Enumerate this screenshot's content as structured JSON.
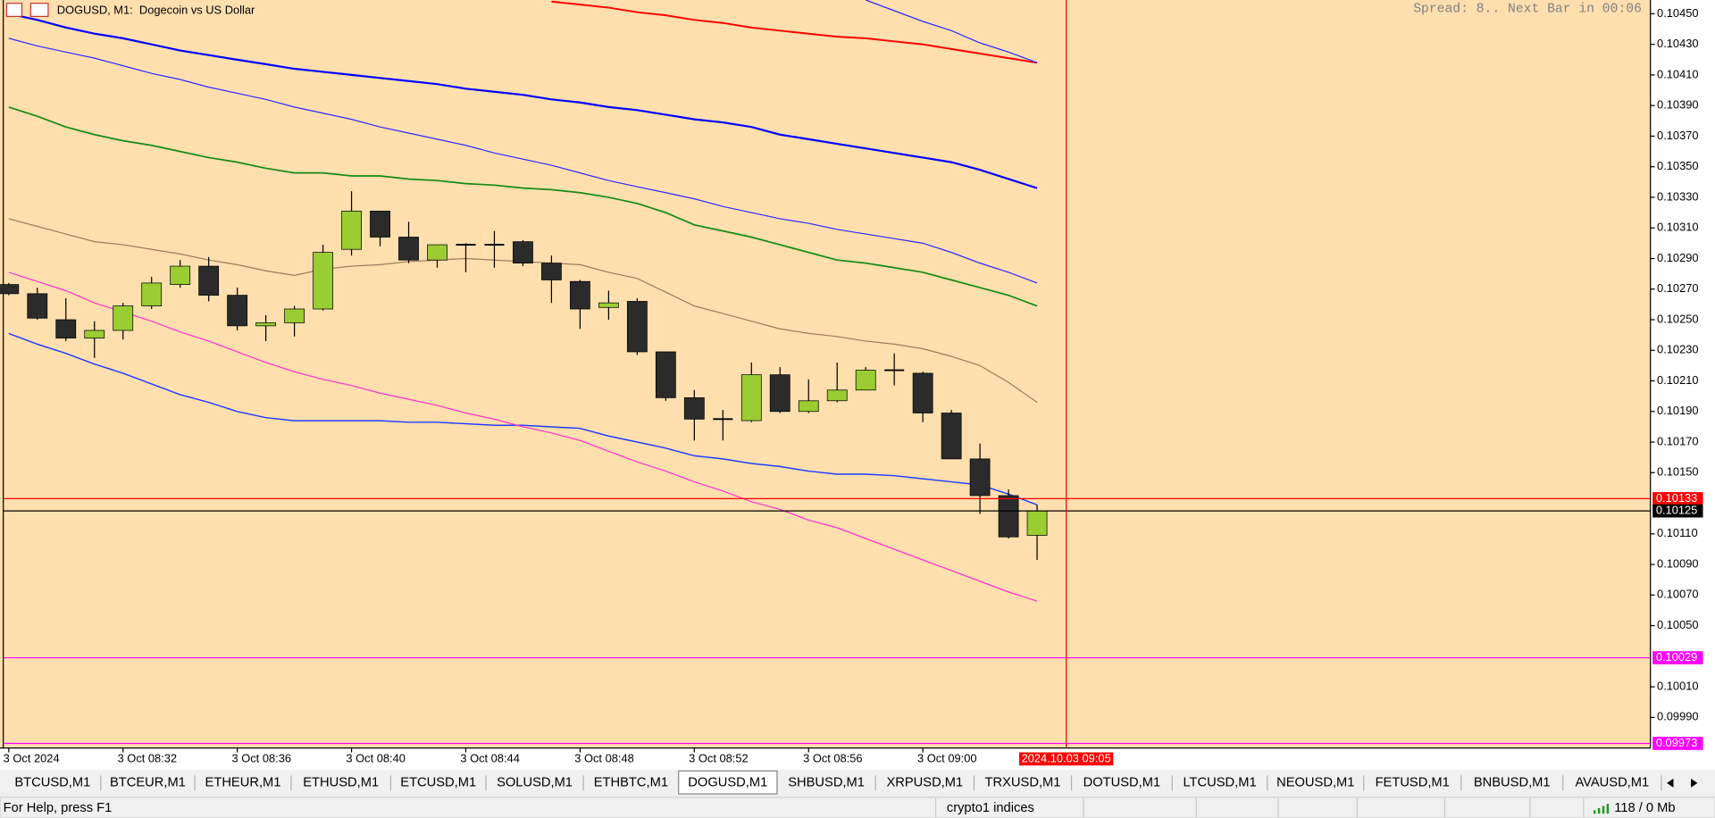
{
  "window": {
    "chart_title": "DOGUSD, M1:  Dogecoin vs US Dollar",
    "info": "Spread: 8.. Next Bar in 00:06",
    "tabs": [
      "BTCUSD,M1",
      "BTCEUR,M1",
      "ETHEUR,M1",
      "ETHUSD,M1",
      "ETCUSD,M1",
      "SOLUSD,M1",
      "ETHBTC,M1",
      "DOGUSD,M1",
      "SHBUSD,M1",
      "XRPUSD,M1",
      "TRXUSD,M1",
      "DOTUSD,M1",
      "LTCUSD,M1",
      "NEOUSD,M1",
      "FETUSD,M1",
      "BNBUSD,M1",
      "AVAUSD,M1"
    ],
    "active_tab": 7,
    "status": {
      "help": "For Help, press F1",
      "profile": "crypto1 indices",
      "traffic": "118 / 0 Mb"
    }
  },
  "chart_data": {
    "type": "candlestick",
    "categories": [
      "3 Oct 2024",
      null,
      null,
      null,
      "3 Oct 08:32",
      null,
      null,
      null,
      "3 Oct 08:36",
      null,
      null,
      null,
      "3 Oct 08:40",
      null,
      null,
      null,
      "3 Oct 08:44",
      null,
      null,
      null,
      "3 Oct 08:48",
      null,
      null,
      null,
      "3 Oct 08:52",
      null,
      null,
      null,
      "3 Oct 08:56",
      null,
      null,
      null,
      "3 Oct 09:00",
      null,
      null,
      null,
      null
    ],
    "open": [
      0.10273,
      0.10267,
      0.1025,
      0.10238,
      0.10243,
      0.10259,
      0.10273,
      0.10285,
      0.10266,
      0.10246,
      0.10248,
      0.10257,
      0.10296,
      0.10321,
      0.10304,
      0.10289,
      0.10299,
      0.10299,
      0.10301,
      0.10287,
      0.10275,
      0.10258,
      0.10262,
      0.10229,
      0.10199,
      0.10185,
      0.10184,
      0.10214,
      0.1019,
      0.10197,
      0.10204,
      0.10217,
      0.10215,
      0.10189,
      0.10159,
      0.10135,
      0.10109
    ],
    "high": [
      0.10274,
      0.10271,
      0.10264,
      0.10249,
      0.10261,
      0.10278,
      0.10289,
      0.10291,
      0.10271,
      0.10253,
      0.10259,
      0.10299,
      0.10334,
      0.10321,
      0.10314,
      0.10299,
      0.103,
      0.10308,
      0.10302,
      0.10292,
      0.10276,
      0.10269,
      0.10264,
      0.10229,
      0.10204,
      0.10191,
      0.10222,
      0.10219,
      0.10211,
      0.10222,
      0.10219,
      0.10228,
      0.10216,
      0.10191,
      0.10169,
      0.10139,
      0.10129
    ],
    "low": [
      0.10266,
      0.1025,
      0.10236,
      0.10225,
      0.10237,
      0.10257,
      0.10271,
      0.10262,
      0.10243,
      0.10236,
      0.10239,
      0.10256,
      0.10292,
      0.10298,
      0.10287,
      0.10284,
      0.10281,
      0.10284,
      0.10285,
      0.10261,
      0.10244,
      0.1025,
      0.10227,
      0.10197,
      0.10171,
      0.10171,
      0.10183,
      0.10189,
      0.10189,
      0.10196,
      0.10204,
      0.10207,
      0.10183,
      0.10159,
      0.10123,
      0.10107,
      0.10093
    ],
    "close": [
      0.10267,
      0.10251,
      0.10238,
      0.10243,
      0.10259,
      0.10274,
      0.10285,
      0.10266,
      0.10246,
      0.10248,
      0.10257,
      0.10294,
      0.10321,
      0.10304,
      0.10289,
      0.10299,
      0.10299,
      0.10299,
      0.10287,
      0.10276,
      0.10257,
      0.10261,
      0.10229,
      0.10199,
      0.10185,
      0.10185,
      0.10214,
      0.1019,
      0.10197,
      0.10204,
      0.10217,
      0.10217,
      0.10189,
      0.10159,
      0.10135,
      0.10108,
      0.10125
    ],
    "up_color": "#9acd32",
    "down_color": "#2b2b2b",
    "doji_color": "#000000",
    "series": [
      {
        "color": "#ff0000",
        "values": [
          null,
          null,
          null,
          null,
          null,
          null,
          null,
          null,
          null,
          null,
          null,
          null,
          null,
          null,
          null,
          null,
          null,
          null,
          null,
          0.10458,
          0.10456,
          0.10454,
          0.10451,
          0.10449,
          0.10446,
          0.10444,
          0.10441,
          0.10439,
          0.10437,
          0.10435,
          0.10434,
          0.10432,
          0.1043,
          0.10427,
          0.10424,
          0.10421,
          0.10418
        ]
      },
      {
        "color": "#2a2aff",
        "values": [
          null,
          null,
          null,
          null,
          null,
          null,
          null,
          null,
          null,
          null,
          null,
          null,
          null,
          null,
          null,
          null,
          null,
          null,
          null,
          null,
          null,
          null,
          null,
          null,
          null,
          null,
          null,
          null,
          null,
          null,
          0.10459,
          0.10452,
          0.10445,
          0.10439,
          0.10431,
          0.10425,
          0.10418
        ]
      },
      {
        "color": "#0000ff",
        "values": [
          0.1045,
          0.10446,
          0.10441,
          0.10437,
          0.10434,
          0.1043,
          0.10426,
          0.10423,
          0.1042,
          0.10417,
          0.10414,
          0.10412,
          0.1041,
          0.10408,
          0.10406,
          0.10404,
          0.10401,
          0.10399,
          0.10397,
          0.10394,
          0.10392,
          0.10389,
          0.10387,
          0.10384,
          0.10381,
          0.10379,
          0.10376,
          0.10371,
          0.10368,
          0.10365,
          0.10362,
          0.10359,
          0.10356,
          0.10353,
          0.10348,
          0.10342,
          0.10336
        ]
      },
      {
        "color": "#2a2aff",
        "values": [
          0.10434,
          0.10429,
          0.10425,
          0.10421,
          0.10416,
          0.10411,
          0.10407,
          0.10402,
          0.10398,
          0.10394,
          0.10389,
          0.10385,
          0.10381,
          0.10376,
          0.10372,
          0.10368,
          0.10364,
          0.10359,
          0.10355,
          0.10351,
          0.10346,
          0.10341,
          0.10337,
          0.10333,
          0.10329,
          0.10324,
          0.1032,
          0.10316,
          0.10313,
          0.10309,
          0.10306,
          0.10303,
          0.103,
          0.10294,
          0.10287,
          0.10281,
          0.10274
        ]
      },
      {
        "color": "#138a13",
        "values": [
          0.10389,
          0.10383,
          0.10376,
          0.10371,
          0.10367,
          0.10364,
          0.1036,
          0.10356,
          0.10353,
          0.10349,
          0.10346,
          0.10346,
          0.10344,
          0.10344,
          0.10342,
          0.10341,
          0.10339,
          0.10338,
          0.10336,
          0.10335,
          0.10333,
          0.1033,
          0.10326,
          0.1032,
          0.10312,
          0.10308,
          0.10304,
          0.10299,
          0.10294,
          0.10289,
          0.10287,
          0.10284,
          0.10281,
          0.10276,
          0.10271,
          0.10266,
          0.10259
        ]
      },
      {
        "color": "#a0785a",
        "values": [
          0.10316,
          0.10311,
          0.10306,
          0.10301,
          0.10299,
          0.10296,
          0.10293,
          0.10289,
          0.10286,
          0.10282,
          0.10279,
          0.10283,
          0.10285,
          0.10286,
          0.10288,
          0.10289,
          0.1029,
          0.10289,
          0.10288,
          0.10287,
          0.10286,
          0.10281,
          0.10277,
          0.10268,
          0.10259,
          0.10254,
          0.10249,
          0.10244,
          0.10241,
          0.10239,
          0.10236,
          0.10234,
          0.10231,
          0.10226,
          0.1022,
          0.10209,
          0.10196
        ]
      },
      {
        "color": "#1f3cff",
        "values": [
          0.10241,
          0.10234,
          0.10228,
          0.10221,
          0.10215,
          0.10208,
          0.10201,
          0.10196,
          0.1019,
          0.10186,
          0.10184,
          0.10184,
          0.10184,
          0.10184,
          0.10183,
          0.10183,
          0.10182,
          0.10181,
          0.10181,
          0.1018,
          0.10179,
          0.10174,
          0.1017,
          0.10166,
          0.10161,
          0.10159,
          0.10156,
          0.10154,
          0.10151,
          0.10149,
          0.10149,
          0.10148,
          0.10146,
          0.10144,
          0.10142,
          0.10136,
          0.10129
        ]
      },
      {
        "color": "#ff33cc",
        "values": [
          0.10281,
          0.10275,
          0.10269,
          0.10261,
          0.10255,
          0.10249,
          0.10242,
          0.10236,
          0.10229,
          0.10222,
          0.10216,
          0.10211,
          0.10207,
          0.10202,
          0.10198,
          0.10194,
          0.10189,
          0.10185,
          0.1018,
          0.10176,
          0.10171,
          0.10164,
          0.10157,
          0.10151,
          0.10144,
          0.10138,
          0.10131,
          0.10126,
          0.10119,
          0.10114,
          0.10107,
          0.101,
          0.10093,
          0.10086,
          0.10079,
          0.10072,
          0.10066
        ]
      }
    ],
    "hlines": [
      {
        "value": 0.10133,
        "color": "#ff0000"
      },
      {
        "value": 0.10125,
        "color": "#000000"
      },
      {
        "value": 0.10029,
        "color": "#ff00ff"
      },
      {
        "value": 0.09973,
        "color": "#ff00ff"
      }
    ],
    "crosshair": {
      "label": "2024.10.03 09:05",
      "color": "#ff0000"
    },
    "ylim": [
      0.0997,
      0.10459
    ],
    "yticks": [
      {
        "value": 0.1045,
        "label": "0.10450"
      },
      {
        "value": 0.1043,
        "label": "0.10430"
      },
      {
        "value": 0.1041,
        "label": "0.10410"
      },
      {
        "value": 0.1039,
        "label": "0.10390"
      },
      {
        "value": 0.1037,
        "label": "0.10370"
      },
      {
        "value": 0.1035,
        "label": "0.10350"
      },
      {
        "value": 0.1033,
        "label": "0.10330"
      },
      {
        "value": 0.1031,
        "label": "0.10310"
      },
      {
        "value": 0.1029,
        "label": "0.10290"
      },
      {
        "value": 0.1027,
        "label": "0.10270"
      },
      {
        "value": 0.1025,
        "label": "0.10250"
      },
      {
        "value": 0.1023,
        "label": "0.10230"
      },
      {
        "value": 0.1021,
        "label": "0.10210"
      },
      {
        "value": 0.1019,
        "label": "0.10190"
      },
      {
        "value": 0.1017,
        "label": "0.10170"
      },
      {
        "value": 0.1015,
        "label": "0.10150"
      },
      {
        "value": 0.1011,
        "label": "0.10110"
      },
      {
        "value": 0.1009,
        "label": "0.10090"
      },
      {
        "value": 0.1007,
        "label": "0.10070"
      },
      {
        "value": 0.1005,
        "label": "0.10050"
      },
      {
        "value": 0.1001,
        "label": "0.10010"
      },
      {
        "value": 0.0999,
        "label": "0.09990"
      }
    ],
    "background": "#ffdfae"
  }
}
